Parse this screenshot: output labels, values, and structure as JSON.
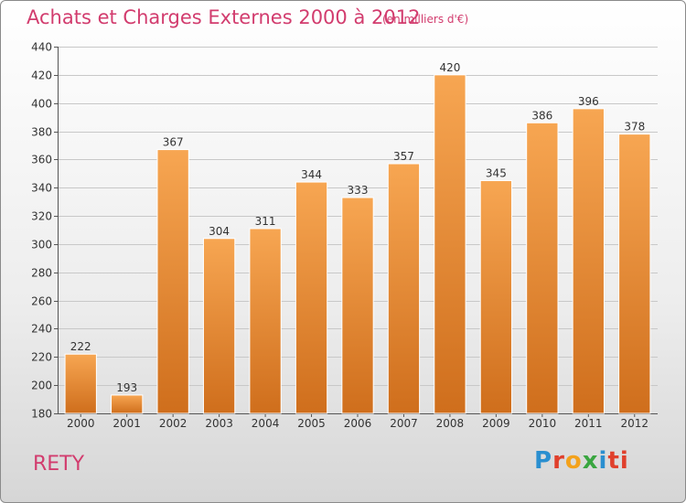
{
  "header": {
    "title": "Achats et Charges Externes 2000 à 2012",
    "subtitle": "(en milliers d'€)"
  },
  "footer": {
    "commune": "RETY",
    "logo": [
      "P",
      "r",
      "o",
      "x",
      "i",
      "ti"
    ]
  },
  "colors": {
    "title": "#d23c6e",
    "bar_top": "#f7a652",
    "bar_bottom": "#cf6e1c"
  },
  "chart_data": {
    "type": "bar",
    "title": "Achats et Charges Externes 2000 à 2012",
    "subtitle": "(en milliers d'€)",
    "xlabel": "",
    "ylabel": "",
    "categories": [
      "2000",
      "2001",
      "2002",
      "2003",
      "2004",
      "2005",
      "2006",
      "2007",
      "2008",
      "2009",
      "2010",
      "2011",
      "2012"
    ],
    "values": [
      222,
      193,
      367,
      304,
      311,
      344,
      333,
      357,
      420,
      345,
      386,
      396,
      378
    ],
    "ylim": [
      180,
      440
    ],
    "yticks": [
      180,
      200,
      220,
      240,
      260,
      280,
      300,
      320,
      340,
      360,
      380,
      400,
      420,
      440
    ],
    "grid": true,
    "legend": "none"
  }
}
